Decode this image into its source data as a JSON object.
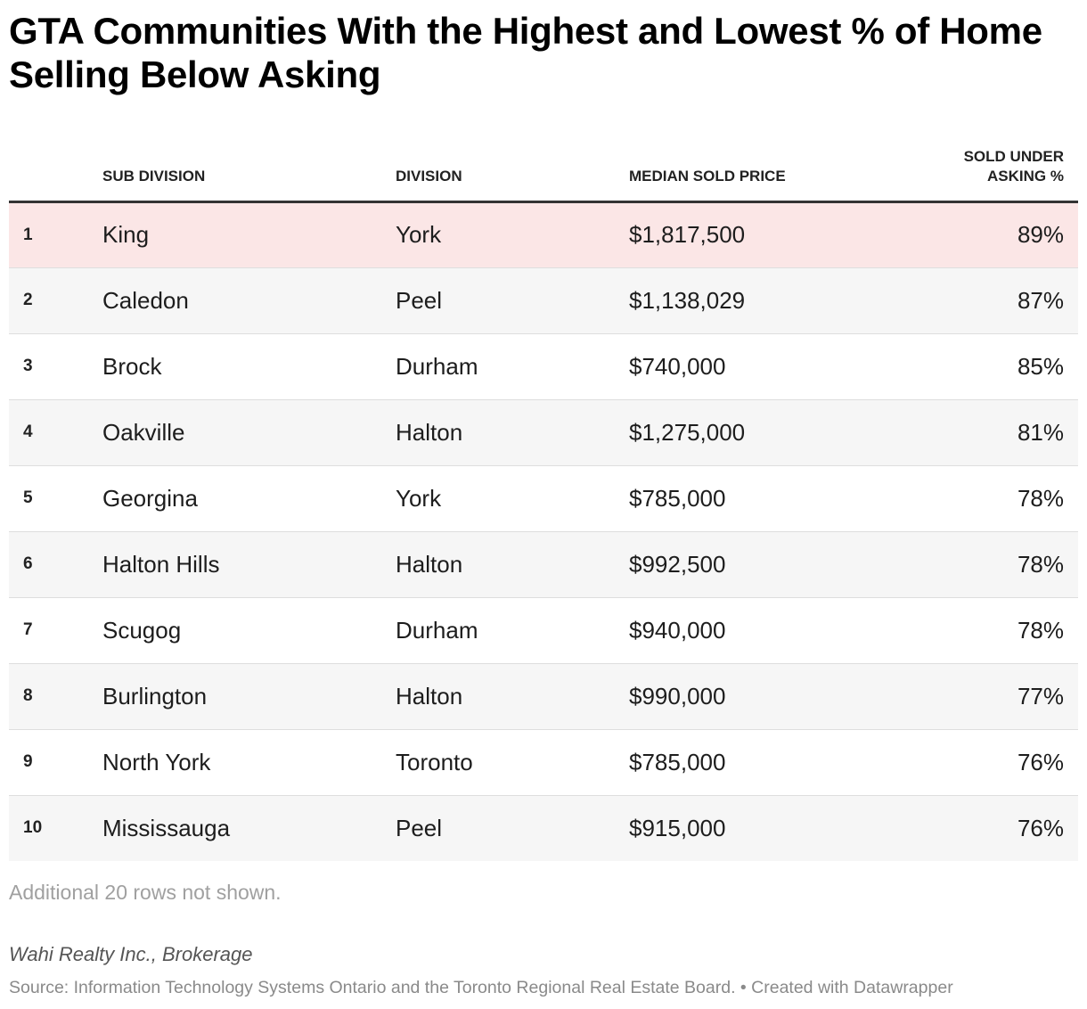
{
  "title": "GTA Communities With the Highest and Lowest % of Home Selling Below Asking",
  "colors": {
    "highlight_row": "#fbe6e6",
    "alt_row": "#f6f6f6",
    "header_rule": "#333333"
  },
  "chart_data": {
    "type": "table",
    "title": "GTA Communities With the Highest and Lowest % of Home Selling Below Asking",
    "columns": [
      "",
      "SUB DIVISION",
      "DIVISION",
      "MEDIAN SOLD PRICE",
      "SOLD UNDER ASKING %"
    ],
    "rows": [
      {
        "rank": "1",
        "sub_division": "King",
        "division": "York",
        "median_sold_price": "$1,817,500",
        "sold_under_asking": "89%"
      },
      {
        "rank": "2",
        "sub_division": "Caledon",
        "division": "Peel",
        "median_sold_price": "$1,138,029",
        "sold_under_asking": "87%"
      },
      {
        "rank": "3",
        "sub_division": "Brock",
        "division": "Durham",
        "median_sold_price": "$740,000",
        "sold_under_asking": "85%"
      },
      {
        "rank": "4",
        "sub_division": "Oakville",
        "division": "Halton",
        "median_sold_price": "$1,275,000",
        "sold_under_asking": "81%"
      },
      {
        "rank": "5",
        "sub_division": "Georgina",
        "division": "York",
        "median_sold_price": "$785,000",
        "sold_under_asking": "78%"
      },
      {
        "rank": "6",
        "sub_division": "Halton Hills",
        "division": "Halton",
        "median_sold_price": "$992,500",
        "sold_under_asking": "78%"
      },
      {
        "rank": "7",
        "sub_division": "Scugog",
        "division": "Durham",
        "median_sold_price": "$940,000",
        "sold_under_asking": "78%"
      },
      {
        "rank": "8",
        "sub_division": "Burlington",
        "division": "Halton",
        "median_sold_price": "$990,000",
        "sold_under_asking": "77%"
      },
      {
        "rank": "9",
        "sub_division": "North York",
        "division": "Toronto",
        "median_sold_price": "$785,000",
        "sold_under_asking": "76%"
      },
      {
        "rank": "10",
        "sub_division": "Mississauga",
        "division": "Peel",
        "median_sold_price": "$915,000",
        "sold_under_asking": "76%"
      }
    ],
    "highlighted_rows": [
      1
    ]
  },
  "note": "Additional 20 rows not shown.",
  "byline": "Wahi Realty Inc., Brokerage",
  "source": "Source: Information Technology Systems Ontario and the Toronto Regional Real Estate Board. • Created with Datawrapper"
}
